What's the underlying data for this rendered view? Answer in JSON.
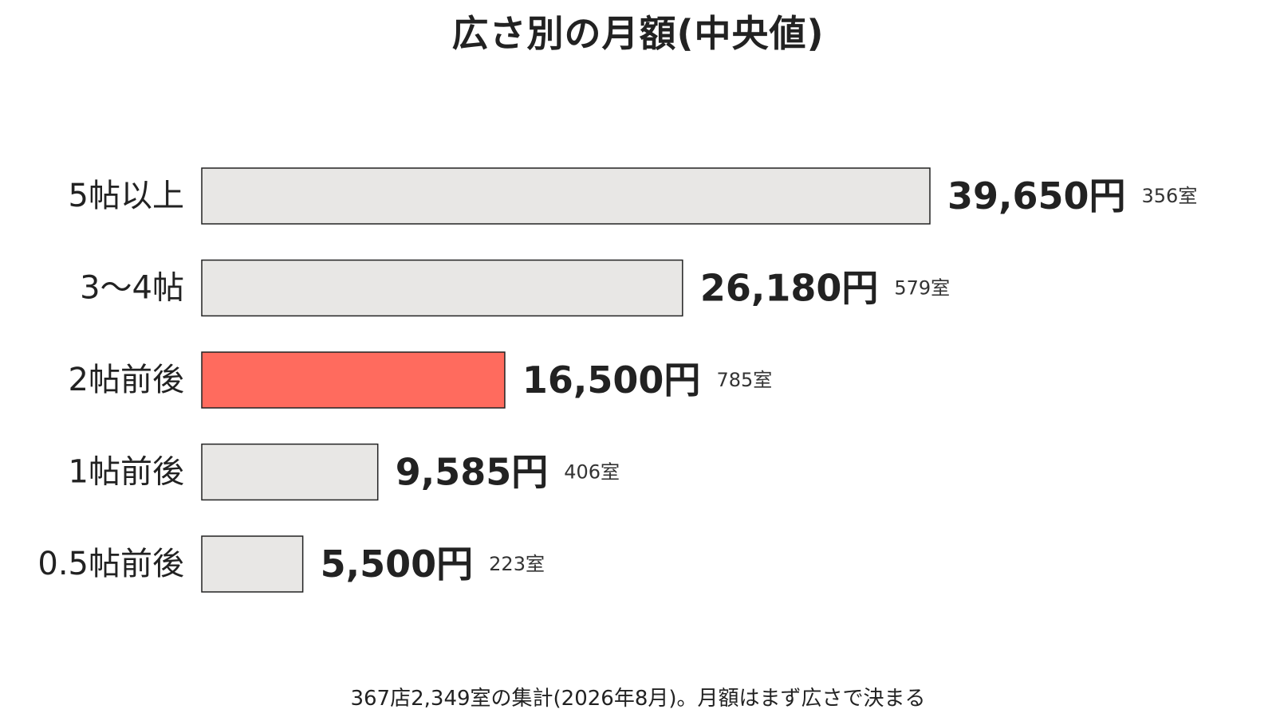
{
  "chart_data": {
    "type": "bar",
    "orientation": "horizontal",
    "title": "広さ別の月額(中央値)",
    "categories": [
      "5帖以上",
      "3〜4帖",
      "2帖前後",
      "1帖前後",
      "0.5帖前後"
    ],
    "values": [
      39650,
      26180,
      16500,
      9585,
      5500
    ],
    "value_labels": [
      "39,650円",
      "26,180円",
      "16,500円",
      "9,585円",
      "5,500円"
    ],
    "counts": [
      "356室",
      "579室",
      "785室",
      "406室",
      "223室"
    ],
    "highlight_index": 2,
    "xlim": [
      0,
      39650
    ],
    "grid": false,
    "legend": "none",
    "colors": {
      "bar": "#e8e7e5",
      "highlight": "#ff6b5e",
      "stroke": "#222222"
    }
  },
  "footer": "367店2,349室の集計(2026年8月)。月額はまず広さで決まる"
}
